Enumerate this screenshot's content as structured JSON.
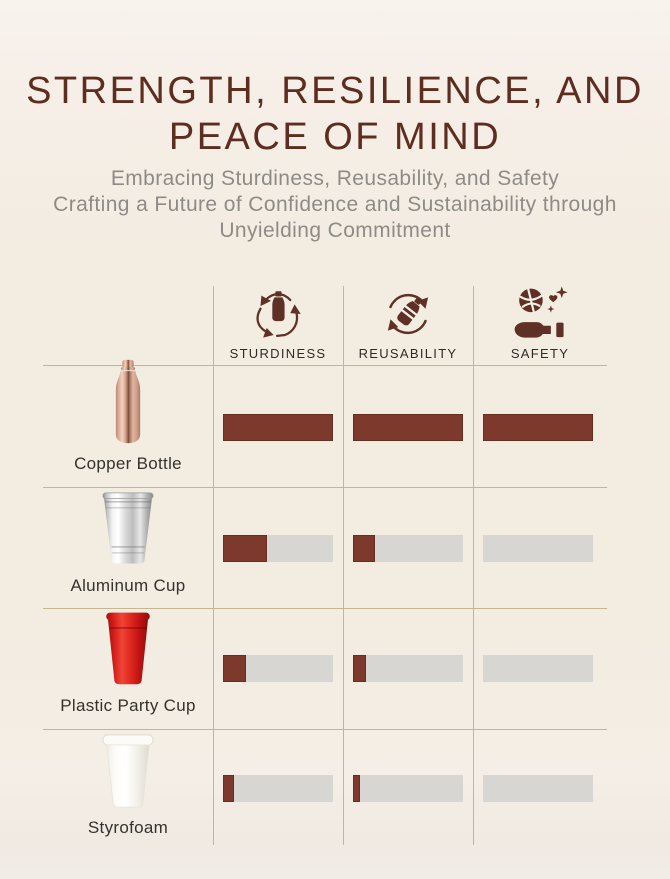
{
  "header": {
    "title_line1": "STRENGTH, RESILIENCE, AND",
    "title_line2": "PEACE OF MIND",
    "subtitle_lines": [
      "Embracing Sturdiness, Reusability, and Safety",
      "Crafting a Future of Confidence and Sustainability through",
      "Unyielding Commitment"
    ]
  },
  "table": {
    "columns": [
      {
        "label": "STURDINESS",
        "icon": "recycle-bottle-icon"
      },
      {
        "label": "REUSABILITY",
        "icon": "reuse-arrows-bottle-icon"
      },
      {
        "label": "SAFETY",
        "icon": "hand-globe-heart-icon"
      }
    ],
    "rows": [
      {
        "label": "Copper Bottle",
        "image": "copper-bottle-image",
        "values": [
          100,
          100,
          100
        ]
      },
      {
        "label": "Aluminum Cup",
        "image": "aluminum-cup-image",
        "values": [
          40,
          20,
          0
        ]
      },
      {
        "label": "Plastic Party Cup",
        "image": "plastic-party-cup-image",
        "values": [
          21,
          12,
          0
        ]
      },
      {
        "label": "Styrofoam",
        "image": "styrofoam-cup-image",
        "values": [
          10,
          6,
          0
        ]
      }
    ]
  },
  "chart_data": {
    "type": "bar",
    "categories": [
      "Copper Bottle",
      "Aluminum Cup",
      "Plastic Party Cup",
      "Styrofoam"
    ],
    "series": [
      {
        "name": "Sturdiness",
        "values": [
          100,
          40,
          21,
          10
        ]
      },
      {
        "name": "Reusability",
        "values": [
          100,
          20,
          12,
          6
        ]
      },
      {
        "name": "Safety",
        "values": [
          100,
          0,
          0,
          0
        ]
      }
    ],
    "title": "STRENGTH, RESILIENCE, AND PEACE OF MIND",
    "xlabel": "",
    "ylabel": "",
    "value_unit": "percent of full bar (0-100)",
    "ylim": [
      0,
      100
    ],
    "legend_position": "icon column headers",
    "grid": "table lines on"
  },
  "colors": {
    "background": "#f3ece1",
    "title": "#5f2d1f",
    "subtitle": "#8e8b87",
    "icon_brown": "#5f3126",
    "bar_fill": "#7d392b",
    "bar_track": "#d8d6d3",
    "grid_line": "#c6b591",
    "label_text": "#35322d",
    "party_cup_red": "#d31f1a",
    "copper": "#d9ad96",
    "aluminum": "#c7c7c7"
  }
}
